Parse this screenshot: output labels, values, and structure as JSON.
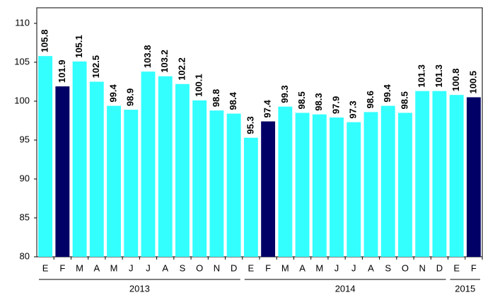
{
  "chart_data": {
    "type": "bar",
    "groups": [
      {
        "name": "2013",
        "categories": [
          "E",
          "F",
          "M",
          "A",
          "M",
          "J",
          "J",
          "A",
          "S",
          "O",
          "N",
          "D"
        ],
        "values": [
          105.8,
          101.9,
          105.1,
          102.5,
          99.4,
          98.9,
          103.8,
          103.2,
          102.2,
          100.1,
          98.8,
          98.4
        ],
        "colors": [
          "#33ffff",
          "#000066",
          "#33ffff",
          "#33ffff",
          "#33ffff",
          "#33ffff",
          "#33ffff",
          "#33ffff",
          "#33ffff",
          "#33ffff",
          "#33ffff",
          "#33ffff"
        ]
      },
      {
        "name": "2014",
        "categories": [
          "E",
          "F",
          "M",
          "A",
          "M",
          "J",
          "J",
          "A",
          "S",
          "O",
          "N",
          "D"
        ],
        "values": [
          95.3,
          97.4,
          99.3,
          98.5,
          98.3,
          97.9,
          97.3,
          98.6,
          99.4,
          98.5,
          101.3,
          101.3
        ],
        "colors": [
          "#33ffff",
          "#000066",
          "#33ffff",
          "#33ffff",
          "#33ffff",
          "#33ffff",
          "#33ffff",
          "#33ffff",
          "#33ffff",
          "#33ffff",
          "#33ffff",
          "#33ffff"
        ]
      },
      {
        "name": "2015",
        "categories": [
          "E",
          "F"
        ],
        "values": [
          100.8,
          100.5
        ],
        "colors": [
          "#33ffff",
          "#000066"
        ]
      }
    ],
    "ylim": [
      80,
      112
    ],
    "yticks": [
      80,
      85,
      90,
      95,
      100,
      105,
      110
    ]
  }
}
